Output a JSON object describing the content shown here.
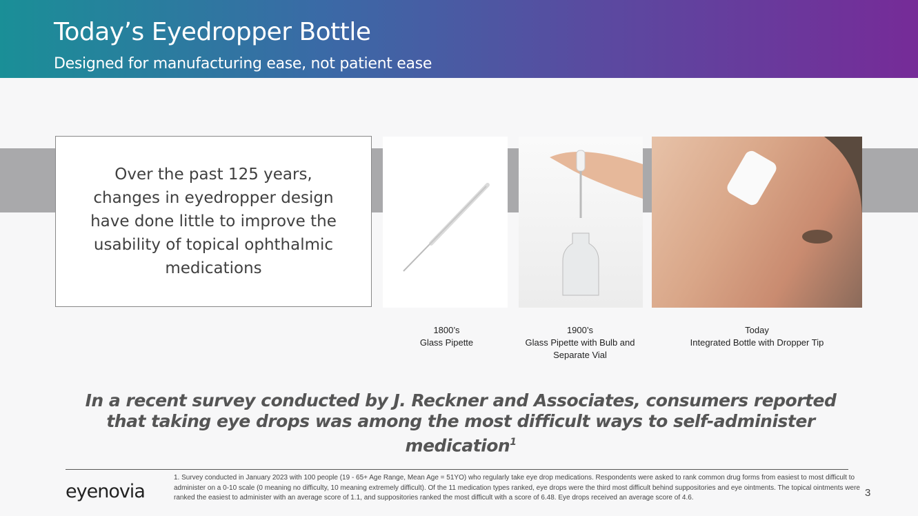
{
  "header": {
    "title": "Today’s Eyedropper Bottle",
    "subtitle": "Designed for manufacturing ease, not patient ease",
    "gradient": [
      "#1a8f97",
      "#5a4aa0",
      "#762b98"
    ]
  },
  "statement": "Over the past 125 years, changes in eyedropper design have done little to improve the usability of topical ophthalmic medications",
  "images": [
    {
      "icon": "glass-pipette-image",
      "caption_era": "1800’s",
      "caption_desc": "Glass Pipette"
    },
    {
      "icon": "pipette-bulb-vial-image",
      "caption_era": "1900’s",
      "caption_desc": "Glass Pipette with Bulb and Separate Vial"
    },
    {
      "icon": "person-using-eye-drops-image",
      "caption_era": "Today",
      "caption_desc": "Integrated Bottle with Dropper Tip"
    }
  ],
  "quote": {
    "text": "In a recent survey conducted by J. Reckner and Associates, consumers reported that taking eye drops was among the most difficult ways to self-administer medication",
    "sup": "1"
  },
  "footer": {
    "logo": "eyenovia",
    "footnote": "1. Survey conducted in January 2023 with 100 people (19 - 65+ Age Range, Mean Age = 51YO) who regularly take eye drop medications.  Respondents were asked to rank common drug forms from easiest to most difficult to administer on a 0-10 scale (0 meaning no difficulty, 10 meaning extremely difficult). Of the 11 medication types ranked, eye drops were the third most difficult behind suppositories and eye ointments. The topical ointments were ranked the easiest to administer with an average score of 1.1, and suppositories ranked the most difficult with a score of 6.48. Eye drops received an average score of 4.6.",
    "page": "3"
  }
}
